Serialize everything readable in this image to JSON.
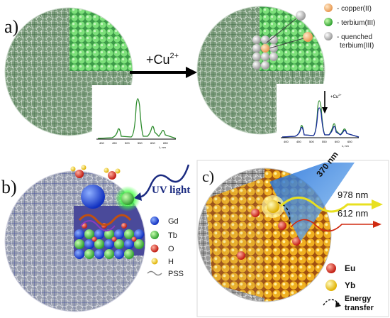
{
  "panel_a": {
    "label": "a)",
    "reaction_label": "+Cu",
    "reaction_superscript": "2+",
    "legend": [
      {
        "color": "#f0b070",
        "text": "- copper(II)"
      },
      {
        "color": "#6fd36a",
        "text": "- terbium(III)"
      },
      {
        "color": "#c8c8c8",
        "text": "- quenched"
      },
      {
        "color": "",
        "text": "terbium(III)"
      }
    ],
    "spectrum_left": {
      "x_ticks": [
        "400",
        "450",
        "500",
        "550",
        "600",
        "650"
      ],
      "x_unit": "λ, nm"
    },
    "spectrum_right": {
      "x_ticks": [
        "400",
        "450",
        "500",
        "550",
        "600",
        "650"
      ],
      "x_unit": "λ, nm",
      "annotation": "+Cu",
      "annotation_superscript": "2+"
    }
  },
  "panel_b": {
    "label": "b)",
    "uv_label": "UV light",
    "legend": [
      {
        "color": "#2a50e0",
        "text": "Gd"
      },
      {
        "color": "#35a535",
        "text": "Tb"
      },
      {
        "color": "#d02a1a",
        "text": "O"
      },
      {
        "color": "#f0e020",
        "text": "H"
      },
      {
        "color": "#888888",
        "text": "PSS"
      }
    ]
  },
  "panel_c": {
    "label": "c)",
    "excitation": "370 nm",
    "emission_1": "978 nm",
    "emission_2": "612 nm",
    "legend": [
      {
        "color": "#e02a10",
        "text": "Eu"
      },
      {
        "color": "#f0c020",
        "text": "Yb"
      }
    ],
    "energy_label_1": "Energy",
    "energy_label_2": "transfer"
  }
}
